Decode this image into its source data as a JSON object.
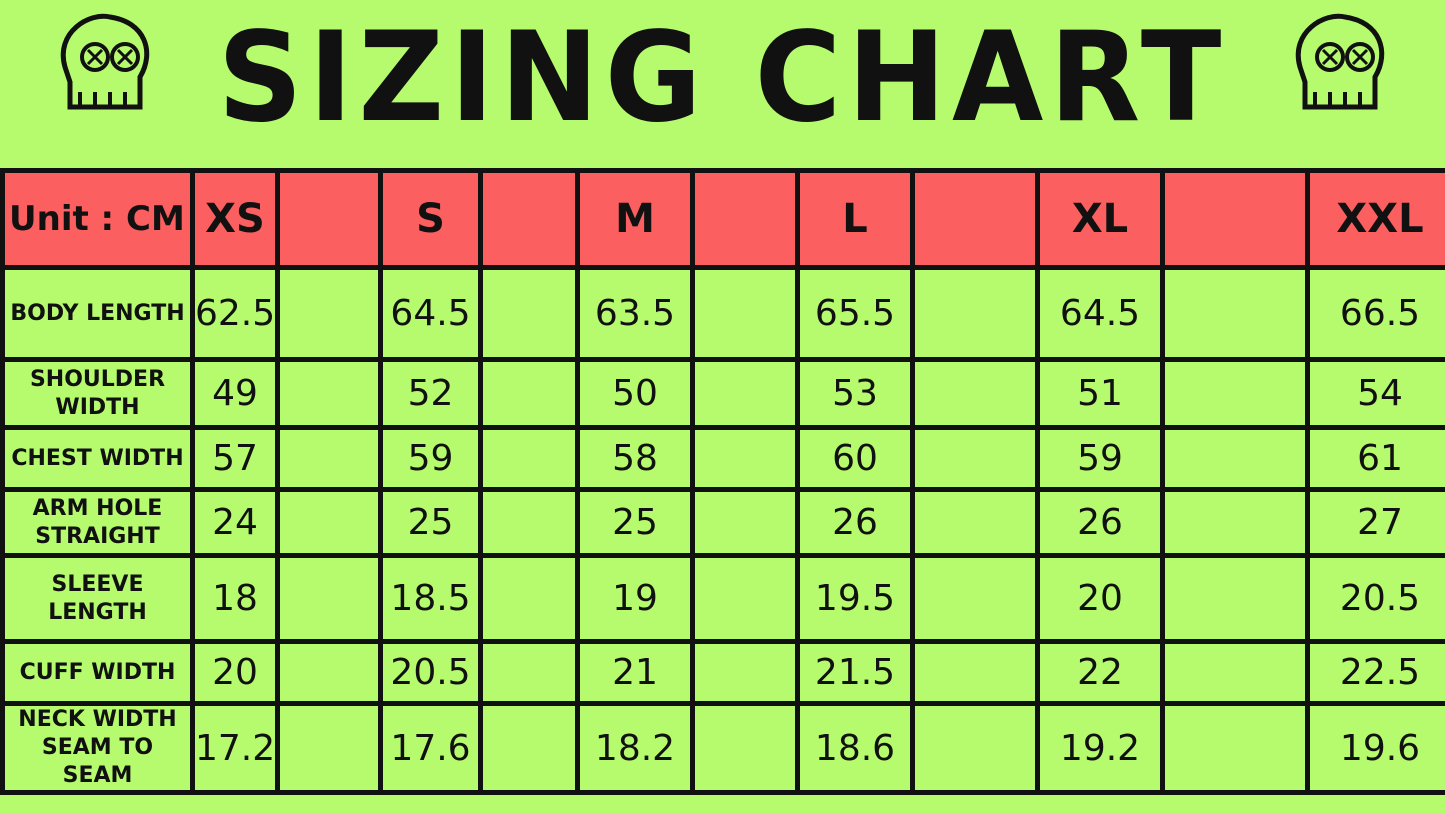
{
  "title": "SIZING CHART",
  "colors": {
    "background": "#b6fb6e",
    "header_band": "#fb5f5f",
    "ink": "#111111"
  },
  "icons": [
    "skull-icon-left",
    "skull-icon-right"
  ],
  "chart_data": {
    "type": "table",
    "title": "SIZING CHART",
    "unit_label": "Unit : CM",
    "columns": [
      "XS",
      "S",
      "M",
      "L",
      "XL",
      "XXL"
    ],
    "rows": [
      {
        "label": "BODY LENGTH",
        "values": [
          "62.5",
          "64.5",
          "63.5",
          "65.5",
          "64.5",
          "66.5"
        ]
      },
      {
        "label": "SHOULDER WIDTH",
        "values": [
          "49",
          "52",
          "50",
          "53",
          "51",
          "54"
        ]
      },
      {
        "label": "CHEST WIDTH",
        "values": [
          "57",
          "59",
          "58",
          "60",
          "59",
          "61"
        ]
      },
      {
        "label": "ARM HOLE STRAIGHT",
        "values": [
          "24",
          "25",
          "25",
          "26",
          "26",
          "27"
        ]
      },
      {
        "label": "SLEEVE LENGTH",
        "values": [
          "18",
          "18.5",
          "19",
          "19.5",
          "20",
          "20.5"
        ]
      },
      {
        "label": "CUFF WIDTH",
        "values": [
          "20",
          "20.5",
          "21",
          "21.5",
          "22",
          "22.5"
        ]
      },
      {
        "label": "NECK WIDTH SEAM TO SEAM",
        "values": [
          "17.2",
          "17.6",
          "18.2",
          "18.6",
          "19.2",
          "19.6"
        ]
      }
    ]
  }
}
